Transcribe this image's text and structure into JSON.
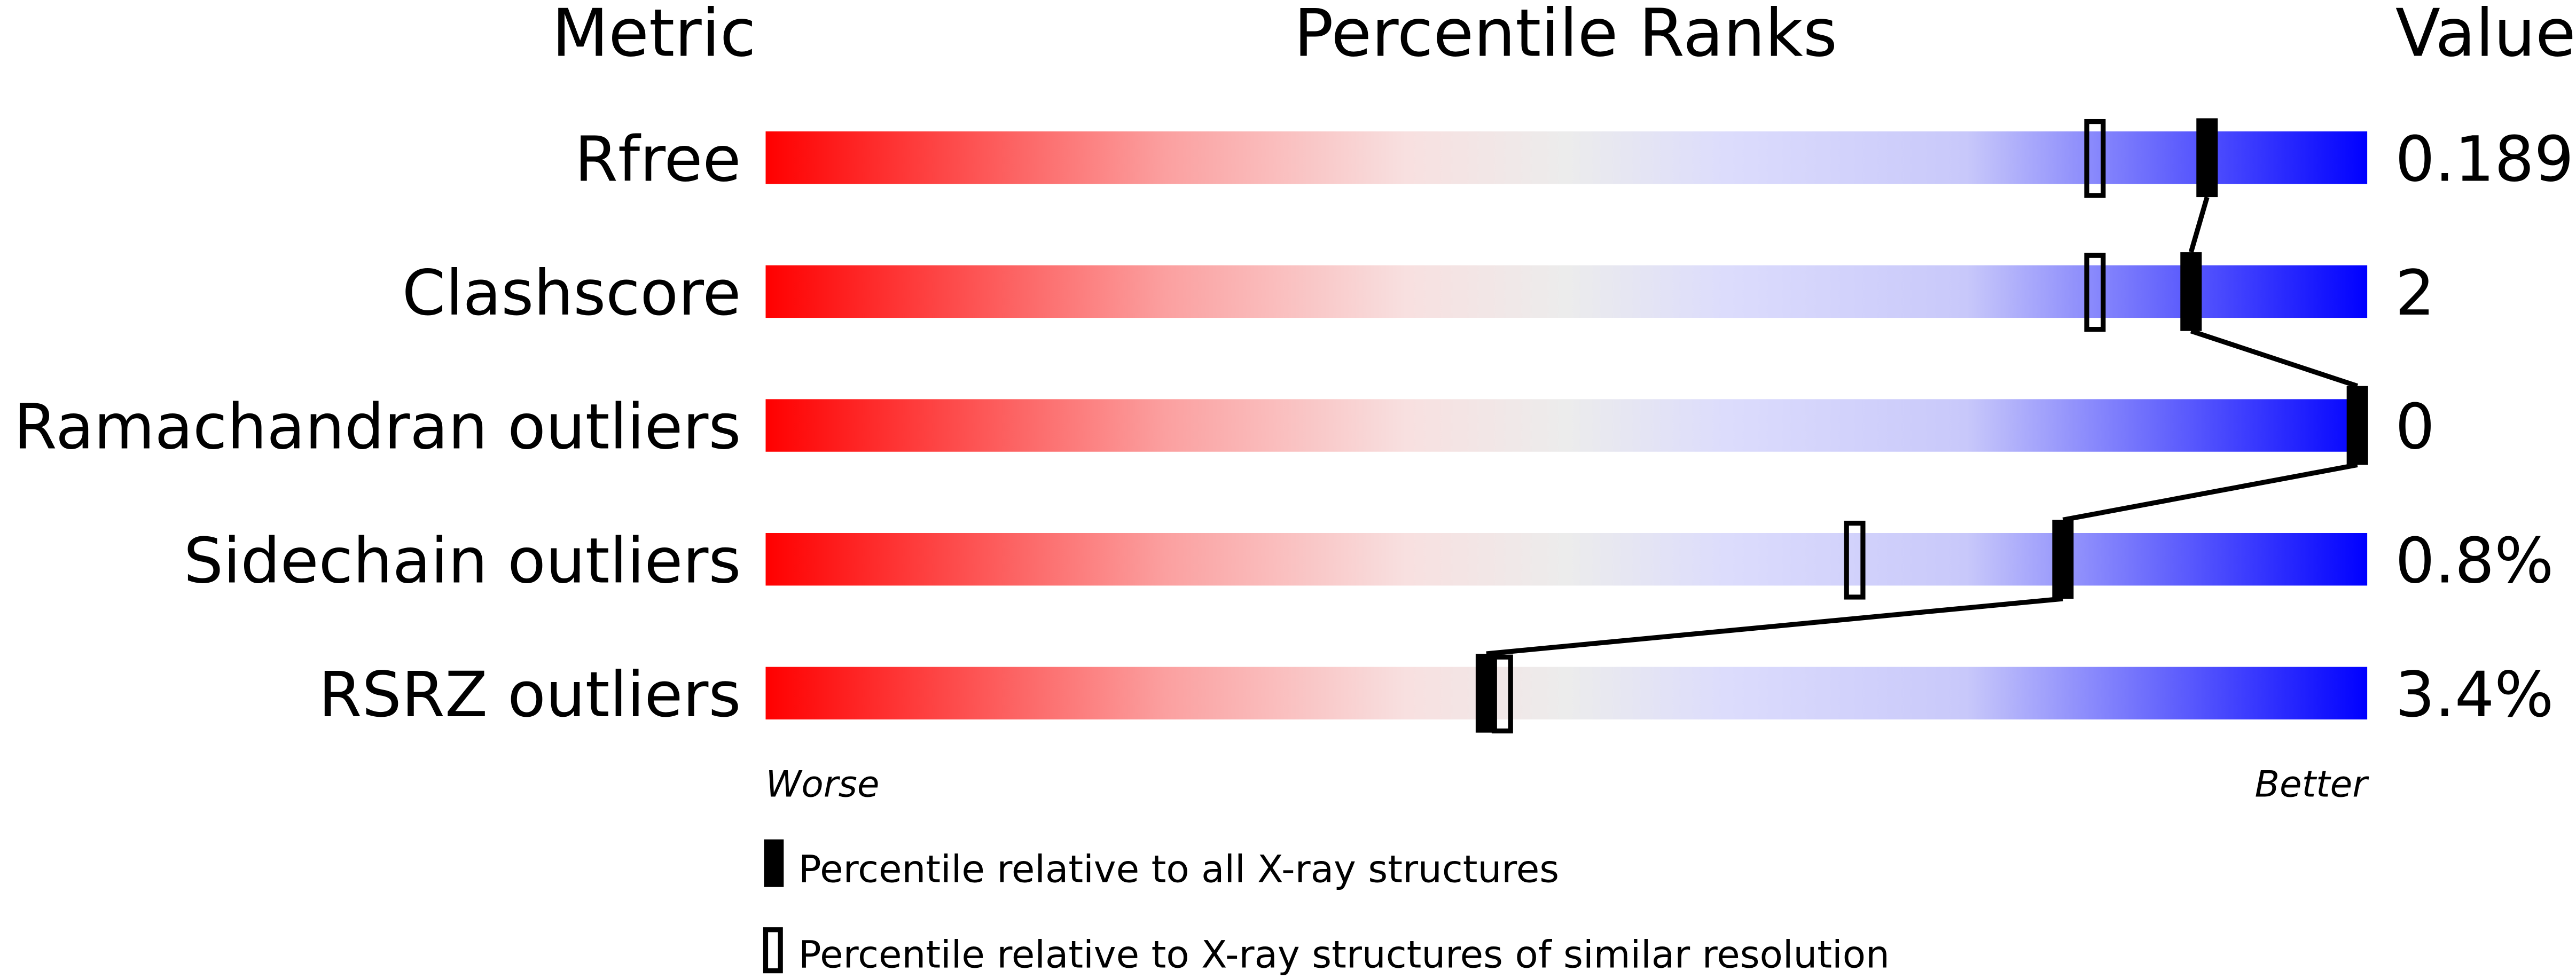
{
  "chart_data": {
    "type": "percentile-slider",
    "headers": {
      "metric": "Metric",
      "ranks": "Percentile Ranks",
      "value": "Value"
    },
    "axis": {
      "min_label": "Worse",
      "max_label": "Better",
      "range": [
        0,
        100
      ]
    },
    "gradient_colors": [
      "#ff0000",
      "#eeeeee",
      "#0000ff"
    ],
    "rows": [
      {
        "metric": "Rfree",
        "value": "0.189",
        "percentile_all": 90,
        "percentile_similar": 83
      },
      {
        "metric": "Clashscore",
        "value": "2",
        "percentile_all": 89,
        "percentile_similar": 83
      },
      {
        "metric": "Ramachandran outliers",
        "value": "0",
        "percentile_all": 100,
        "percentile_similar": null
      },
      {
        "metric": "Sidechain outliers",
        "value": "0.8%",
        "percentile_all": 81,
        "percentile_similar": 68
      },
      {
        "metric": "RSRZ outliers",
        "value": "3.4%",
        "percentile_all": 45,
        "percentile_similar": 46
      }
    ],
    "legend": [
      {
        "marker": "filled",
        "label": "Percentile relative to all X-ray structures"
      },
      {
        "marker": "hollow",
        "label": "Percentile relative to X-ray structures of similar resolution"
      }
    ]
  }
}
